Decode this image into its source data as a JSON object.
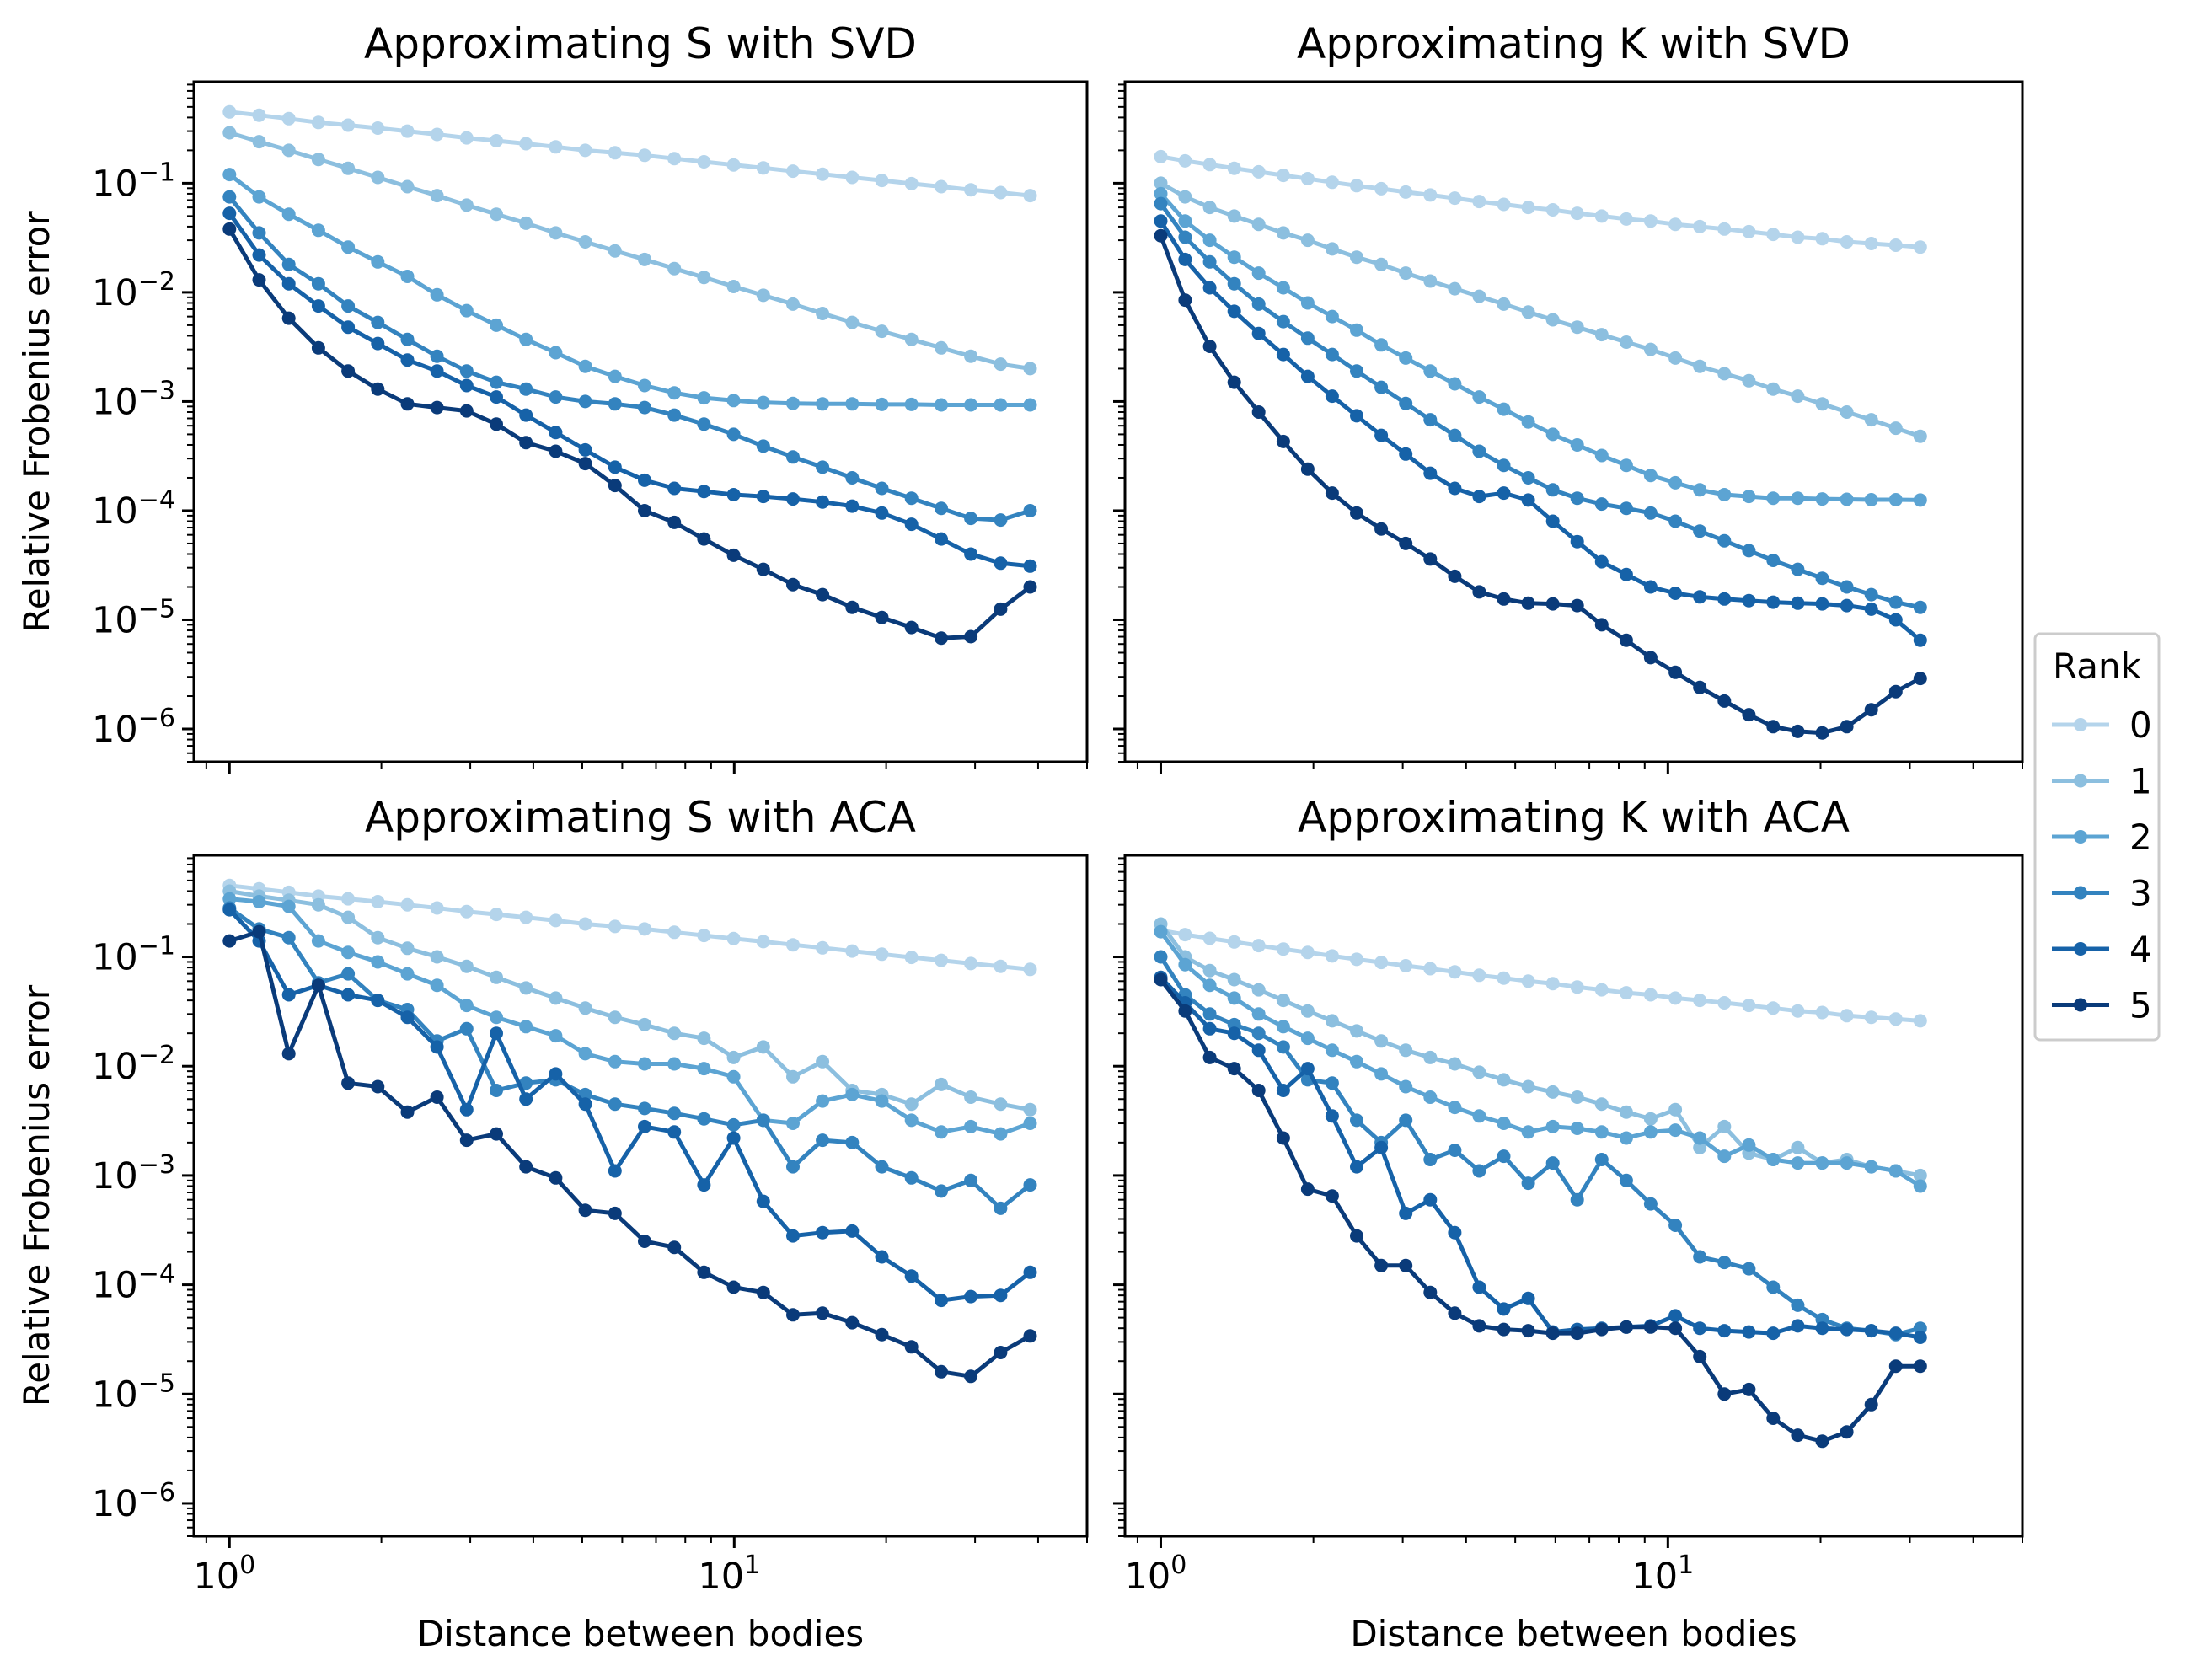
{
  "chart_data": [
    {
      "type": "line",
      "panel": "top-left",
      "title": "Approximating S with SVD",
      "xlabel": "",
      "ylabel": "Relative Frobenius error",
      "xscale": "log",
      "yscale": "log",
      "xlim": [
        0.85,
        50
      ],
      "ylim": [
        5e-07,
        0.85
      ],
      "x": [
        1.0,
        1.145,
        1.311,
        1.501,
        1.718,
        1.967,
        2.252,
        2.578,
        2.951,
        3.379,
        3.868,
        4.429,
        5.071,
        5.805,
        6.646,
        7.609,
        8.711,
        9.973,
        11.42,
        13.07,
        14.96,
        17.13,
        19.61,
        22.45,
        25.71,
        29.43,
        33.7,
        38.58
      ],
      "series": [
        {
          "name": "0",
          "values": [
            0.45,
            0.42,
            0.39,
            0.36,
            0.34,
            0.32,
            0.3,
            0.28,
            0.26,
            0.245,
            0.23,
            0.215,
            0.2,
            0.19,
            0.18,
            0.168,
            0.157,
            0.147,
            0.138,
            0.129,
            0.121,
            0.113,
            0.106,
            0.099,
            0.093,
            0.087,
            0.082,
            0.077
          ]
        },
        {
          "name": "1",
          "values": [
            0.29,
            0.24,
            0.2,
            0.165,
            0.137,
            0.113,
            0.093,
            0.077,
            0.063,
            0.052,
            0.043,
            0.035,
            0.029,
            0.024,
            0.02,
            0.0165,
            0.0137,
            0.0113,
            0.0094,
            0.0078,
            0.0064,
            0.0053,
            0.0044,
            0.0037,
            0.0031,
            0.0026,
            0.0022,
            0.002
          ]
        },
        {
          "name": "2",
          "values": [
            0.12,
            0.075,
            0.052,
            0.037,
            0.026,
            0.019,
            0.014,
            0.0095,
            0.0068,
            0.005,
            0.0037,
            0.0028,
            0.0021,
            0.0017,
            0.0014,
            0.0012,
            0.00108,
            0.00102,
            0.00098,
            0.00096,
            0.00095,
            0.00095,
            0.00094,
            0.00094,
            0.00093,
            0.00093,
            0.00093,
            0.00093
          ]
        },
        {
          "name": "3",
          "values": [
            0.075,
            0.035,
            0.018,
            0.012,
            0.0075,
            0.0053,
            0.0037,
            0.0026,
            0.0019,
            0.0015,
            0.0013,
            0.0011,
            0.001,
            0.00095,
            0.00088,
            0.00075,
            0.00062,
            0.0005,
            0.00039,
            0.00031,
            0.00025,
            0.0002,
            0.00016,
            0.00013,
            0.000105,
            8.5e-05,
            8.2e-05,
            0.0001
          ]
        },
        {
          "name": "4",
          "values": [
            0.053,
            0.022,
            0.012,
            0.0075,
            0.0048,
            0.0034,
            0.0024,
            0.0019,
            0.0014,
            0.0011,
            0.00075,
            0.00052,
            0.00036,
            0.00025,
            0.00019,
            0.00016,
            0.00015,
            0.00014,
            0.000135,
            0.000128,
            0.00012,
            0.00011,
            9.5e-05,
            7.5e-05,
            5.5e-05,
            4e-05,
            3.3e-05,
            3.1e-05
          ]
        },
        {
          "name": "5",
          "values": [
            0.038,
            0.013,
            0.0058,
            0.0031,
            0.0019,
            0.0013,
            0.00095,
            0.00088,
            0.00082,
            0.00062,
            0.00042,
            0.00035,
            0.00027,
            0.00017,
            0.0001,
            7.8e-05,
            5.5e-05,
            3.9e-05,
            2.9e-05,
            2.1e-05,
            1.7e-05,
            1.3e-05,
            1.05e-05,
            8.5e-06,
            6.8e-06,
            7e-06,
            1.25e-05,
            2e-05
          ]
        }
      ]
    },
    {
      "type": "line",
      "panel": "top-right",
      "title": "Approximating K with SVD",
      "xlabel": "",
      "ylabel": "",
      "xscale": "log",
      "yscale": "log",
      "xlim": [
        0.85,
        50
      ],
      "ylim": [
        5e-07,
        0.85
      ],
      "x": [
        1.0,
        1.117,
        1.249,
        1.396,
        1.56,
        1.744,
        1.949,
        2.178,
        2.434,
        2.721,
        3.041,
        3.399,
        3.799,
        4.246,
        4.746,
        5.304,
        5.928,
        6.625,
        7.405,
        8.276,
        9.249,
        10.34,
        11.56,
        12.92,
        14.44,
        16.13,
        18.03,
        20.15,
        22.53,
        25.18,
        28.14,
        31.45
      ],
      "series": [
        {
          "name": "0",
          "values": [
            0.175,
            0.16,
            0.148,
            0.137,
            0.127,
            0.118,
            0.11,
            0.102,
            0.095,
            0.089,
            0.083,
            0.078,
            0.073,
            0.068,
            0.064,
            0.06,
            0.057,
            0.053,
            0.05,
            0.047,
            0.045,
            0.042,
            0.04,
            0.038,
            0.036,
            0.034,
            0.032,
            0.031,
            0.029,
            0.028,
            0.027,
            0.026
          ]
        },
        {
          "name": "1",
          "values": [
            0.1,
            0.075,
            0.06,
            0.05,
            0.042,
            0.035,
            0.03,
            0.025,
            0.021,
            0.018,
            0.015,
            0.0127,
            0.0108,
            0.0092,
            0.0078,
            0.0066,
            0.0056,
            0.0048,
            0.0041,
            0.0035,
            0.003,
            0.0025,
            0.0021,
            0.0018,
            0.00155,
            0.0013,
            0.00112,
            0.00095,
            0.0008,
            0.00068,
            0.00057,
            0.00048
          ]
        },
        {
          "name": "2",
          "values": [
            0.08,
            0.045,
            0.03,
            0.021,
            0.015,
            0.011,
            0.008,
            0.006,
            0.0045,
            0.0033,
            0.0025,
            0.0019,
            0.00145,
            0.0011,
            0.00085,
            0.00065,
            0.0005,
            0.0004,
            0.00032,
            0.00026,
            0.00021,
            0.00018,
            0.000155,
            0.00014,
            0.000135,
            0.00013,
            0.00013,
            0.000128,
            0.000127,
            0.000126,
            0.000126,
            0.000125
          ]
        },
        {
          "name": "3",
          "values": [
            0.065,
            0.032,
            0.019,
            0.012,
            0.0078,
            0.0054,
            0.0038,
            0.0027,
            0.0019,
            0.00135,
            0.00096,
            0.00068,
            0.00049,
            0.00035,
            0.00026,
            0.0002,
            0.000155,
            0.00013,
            0.000115,
            0.000105,
            9.5e-05,
            8e-05,
            6.5e-05,
            5.3e-05,
            4.3e-05,
            3.5e-05,
            2.9e-05,
            2.4e-05,
            2e-05,
            1.7e-05,
            1.45e-05,
            1.3e-05
          ]
        },
        {
          "name": "4",
          "values": [
            0.045,
            0.02,
            0.011,
            0.0067,
            0.0042,
            0.0027,
            0.0017,
            0.00112,
            0.00074,
            0.00049,
            0.00033,
            0.00022,
            0.00016,
            0.000135,
            0.000145,
            0.000125,
            8e-05,
            5.2e-05,
            3.4e-05,
            2.6e-05,
            2e-05,
            1.75e-05,
            1.62e-05,
            1.55e-05,
            1.5e-05,
            1.45e-05,
            1.42e-05,
            1.4e-05,
            1.35e-05,
            1.25e-05,
            1e-05,
            6.5e-06
          ]
        },
        {
          "name": "5",
          "values": [
            0.033,
            0.0085,
            0.0032,
            0.0015,
            0.0008,
            0.00043,
            0.00024,
            0.000145,
            9.5e-05,
            6.8e-05,
            5e-05,
            3.6e-05,
            2.5e-05,
            1.8e-05,
            1.55e-05,
            1.42e-05,
            1.4e-05,
            1.35e-05,
            9e-06,
            6.5e-06,
            4.5e-06,
            3.3e-06,
            2.4e-06,
            1.8e-06,
            1.35e-06,
            1.05e-06,
            9.5e-07,
            9.2e-07,
            1.05e-06,
            1.5e-06,
            2.2e-06,
            2.9e-06
          ]
        }
      ]
    },
    {
      "type": "line",
      "panel": "bottom-left",
      "title": "Approximating S with ACA",
      "xlabel": "Distance between bodies",
      "ylabel": "Relative Frobenius error",
      "xscale": "log",
      "yscale": "log",
      "xlim": [
        0.85,
        50
      ],
      "ylim": [
        5e-07,
        0.85
      ],
      "x": [
        1.0,
        1.145,
        1.311,
        1.501,
        1.718,
        1.967,
        2.252,
        2.578,
        2.951,
        3.379,
        3.868,
        4.429,
        5.071,
        5.805,
        6.646,
        7.609,
        8.711,
        9.973,
        11.42,
        13.07,
        14.96,
        17.13,
        19.61,
        22.45,
        25.71,
        29.43,
        33.7,
        38.58
      ],
      "series": [
        {
          "name": "0",
          "values": [
            0.45,
            0.42,
            0.39,
            0.36,
            0.34,
            0.32,
            0.3,
            0.28,
            0.26,
            0.245,
            0.23,
            0.215,
            0.2,
            0.19,
            0.18,
            0.168,
            0.157,
            0.147,
            0.138,
            0.129,
            0.121,
            0.113,
            0.106,
            0.099,
            0.093,
            0.087,
            0.082,
            0.077
          ]
        },
        {
          "name": "1",
          "values": [
            0.4,
            0.36,
            0.33,
            0.3,
            0.23,
            0.15,
            0.12,
            0.1,
            0.082,
            0.065,
            0.052,
            0.042,
            0.034,
            0.028,
            0.024,
            0.02,
            0.018,
            0.012,
            0.015,
            0.008,
            0.011,
            0.006,
            0.0055,
            0.0045,
            0.0068,
            0.0052,
            0.0045,
            0.004
          ]
        },
        {
          "name": "2",
          "values": [
            0.34,
            0.32,
            0.29,
            0.14,
            0.11,
            0.09,
            0.07,
            0.055,
            0.036,
            0.028,
            0.023,
            0.019,
            0.013,
            0.011,
            0.0105,
            0.0105,
            0.0095,
            0.008,
            0.0032,
            0.003,
            0.0048,
            0.0055,
            0.0048,
            0.0032,
            0.0025,
            0.0028,
            0.0024,
            0.003
          ]
        },
        {
          "name": "3",
          "values": [
            0.28,
            0.18,
            0.15,
            0.058,
            0.07,
            0.04,
            0.033,
            0.017,
            0.022,
            0.006,
            0.007,
            0.0075,
            0.0055,
            0.0045,
            0.0041,
            0.0037,
            0.0033,
            0.0029,
            0.0032,
            0.0012,
            0.0021,
            0.002,
            0.0012,
            0.00095,
            0.00072,
            0.0009,
            0.0005,
            0.00082
          ]
        },
        {
          "name": "4",
          "values": [
            0.27,
            0.14,
            0.045,
            0.055,
            0.045,
            0.04,
            0.028,
            0.015,
            0.004,
            0.02,
            0.005,
            0.0085,
            0.0045,
            0.0011,
            0.0028,
            0.0025,
            0.00082,
            0.0022,
            0.00058,
            0.00028,
            0.0003,
            0.00031,
            0.00018,
            0.00012,
            7.2e-05,
            7.8e-05,
            8e-05,
            0.00013
          ]
        },
        {
          "name": "5",
          "values": [
            0.14,
            0.17,
            0.013,
            0.055,
            0.007,
            0.0065,
            0.0038,
            0.0052,
            0.0021,
            0.0024,
            0.0012,
            0.00095,
            0.00048,
            0.00045,
            0.00025,
            0.00022,
            0.00013,
            9.5e-05,
            8.5e-05,
            5.3e-05,
            5.5e-05,
            4.5e-05,
            3.5e-05,
            2.7e-05,
            1.6e-05,
            1.45e-05,
            2.4e-05,
            3.4e-05
          ]
        }
      ]
    },
    {
      "type": "line",
      "panel": "bottom-right",
      "title": "Approximating K with ACA",
      "xlabel": "Distance between bodies",
      "ylabel": "",
      "xscale": "log",
      "yscale": "log",
      "xlim": [
        0.85,
        50
      ],
      "ylim": [
        5e-07,
        0.85
      ],
      "x": [
        1.0,
        1.117,
        1.249,
        1.396,
        1.56,
        1.744,
        1.949,
        2.178,
        2.434,
        2.721,
        3.041,
        3.399,
        3.799,
        4.246,
        4.746,
        5.304,
        5.928,
        6.625,
        7.405,
        8.276,
        9.249,
        10.34,
        11.56,
        12.92,
        14.44,
        16.13,
        18.03,
        20.15,
        22.53,
        25.18,
        28.14,
        31.45
      ],
      "series": [
        {
          "name": "0",
          "values": [
            0.175,
            0.16,
            0.148,
            0.137,
            0.127,
            0.118,
            0.11,
            0.102,
            0.095,
            0.089,
            0.083,
            0.078,
            0.073,
            0.068,
            0.064,
            0.06,
            0.057,
            0.053,
            0.05,
            0.047,
            0.045,
            0.042,
            0.04,
            0.038,
            0.036,
            0.034,
            0.032,
            0.031,
            0.029,
            0.028,
            0.027,
            0.026
          ]
        },
        {
          "name": "1",
          "values": [
            0.2,
            0.1,
            0.075,
            0.062,
            0.05,
            0.04,
            0.032,
            0.026,
            0.021,
            0.017,
            0.014,
            0.012,
            0.0105,
            0.0088,
            0.0075,
            0.0065,
            0.0058,
            0.0052,
            0.0045,
            0.0038,
            0.0033,
            0.004,
            0.0018,
            0.0028,
            0.0016,
            0.0014,
            0.0018,
            0.0013,
            0.0014,
            0.0012,
            0.0011,
            0.001
          ]
        },
        {
          "name": "2",
          "values": [
            0.17,
            0.085,
            0.055,
            0.042,
            0.03,
            0.023,
            0.018,
            0.014,
            0.011,
            0.0085,
            0.0065,
            0.0052,
            0.0042,
            0.0035,
            0.003,
            0.0025,
            0.0028,
            0.0027,
            0.0025,
            0.0022,
            0.0025,
            0.0026,
            0.0022,
            0.0015,
            0.0019,
            0.0014,
            0.0013,
            0.0013,
            0.0013,
            0.0012,
            0.0011,
            0.0008
          ]
        },
        {
          "name": "3",
          "values": [
            0.1,
            0.045,
            0.03,
            0.024,
            0.02,
            0.015,
            0.0075,
            0.007,
            0.0032,
            0.002,
            0.0032,
            0.0014,
            0.0017,
            0.0011,
            0.0015,
            0.00085,
            0.0013,
            0.0006,
            0.0014,
            0.0009,
            0.00055,
            0.00035,
            0.00018,
            0.00016,
            0.00014,
            9.5e-05,
            6.5e-05,
            4.8e-05,
            4e-05,
            3.8e-05,
            3.5e-05,
            4e-05
          ]
        },
        {
          "name": "4",
          "values": [
            0.065,
            0.038,
            0.022,
            0.02,
            0.014,
            0.006,
            0.0095,
            0.0035,
            0.0012,
            0.0018,
            0.00045,
            0.0006,
            0.0003,
            9.5e-05,
            6e-05,
            7.5e-05,
            3.7e-05,
            3.9e-05,
            4e-05,
            4.1e-05,
            4.2e-05,
            5.2e-05,
            4e-05,
            3.8e-05,
            3.7e-05,
            3.6e-05,
            4.2e-05,
            4e-05,
            3.9e-05,
            3.8e-05,
            3.6e-05,
            3.3e-05
          ]
        },
        {
          "name": "5",
          "values": [
            0.062,
            0.032,
            0.012,
            0.0095,
            0.006,
            0.0022,
            0.00075,
            0.00065,
            0.00028,
            0.00015,
            0.00015,
            8.5e-05,
            5.5e-05,
            4.2e-05,
            3.9e-05,
            3.8e-05,
            3.6e-05,
            3.6e-05,
            3.9e-05,
            4.1e-05,
            4.1e-05,
            4e-05,
            2.2e-05,
            1e-05,
            1.1e-05,
            6e-06,
            4.2e-06,
            3.7e-06,
            4.5e-06,
            8e-06,
            1.8e-05,
            1.8e-05
          ]
        }
      ]
    }
  ],
  "axis": {
    "ytick_labels": [
      "10^-1",
      "10^-2",
      "10^-3",
      "10^-4",
      "10^-5",
      "10^-6"
    ],
    "xtick_labels": [
      "10^0",
      "10^1"
    ]
  },
  "legend": {
    "title": "Rank",
    "position": "center-right",
    "entries": [
      "0",
      "1",
      "2",
      "3",
      "4",
      "5"
    ]
  },
  "colors": {
    "0": "#b4d4eb",
    "1": "#8cbfdf",
    "2": "#5ca4d3",
    "3": "#3383bf",
    "4": "#1662a8",
    "5": "#0a3b7a"
  }
}
